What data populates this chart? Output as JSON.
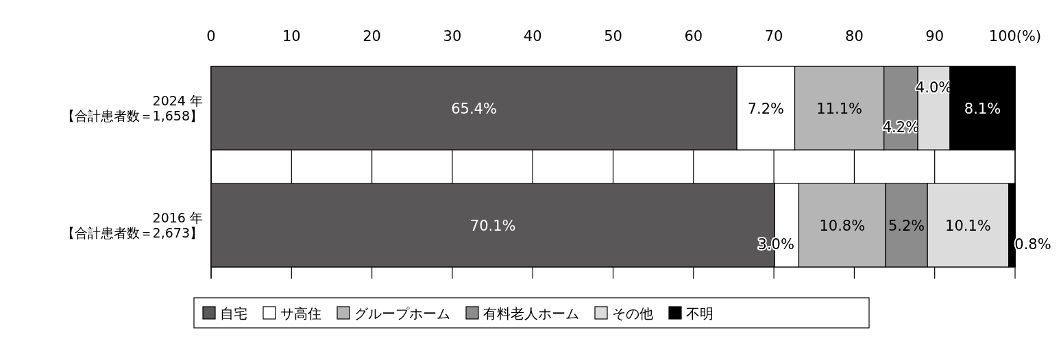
{
  "chart_data": {
    "type": "bar",
    "orientation": "horizontal",
    "stacked": true,
    "categories": [
      "2024 年【合計患者数＝1,658】",
      "2016 年【合計患者数＝2,673】"
    ],
    "series": [
      {
        "name": "自宅",
        "color": "#595757",
        "values": [
          65.4,
          70.1
        ],
        "value_labels": [
          "65.4%",
          "70.1%"
        ]
      },
      {
        "name": "サ高住",
        "color": "#ffffff",
        "values": [
          7.2,
          3.0
        ],
        "value_labels": [
          "7.2%",
          "3.0%"
        ]
      },
      {
        "name": "グループホーム",
        "color": "#b5b5b5",
        "values": [
          11.1,
          10.8
        ],
        "value_labels": [
          "11.1%",
          "10.8%"
        ]
      },
      {
        "name": "有料老人ホーム",
        "color": "#8c8c8c",
        "values": [
          4.2,
          5.2
        ],
        "value_labels": [
          "4.2%",
          "5.2%"
        ]
      },
      {
        "name": "その他",
        "color": "#dcdcdc",
        "values": [
          4.0,
          10.1
        ],
        "value_labels": [
          "4.0%",
          "10.1%"
        ]
      },
      {
        "name": "不明",
        "color": "#000000",
        "values": [
          8.1,
          0.8
        ],
        "value_labels": [
          "8.1%",
          "0.8%"
        ]
      }
    ],
    "xlim": [
      0,
      100
    ],
    "xticks": [
      0,
      10,
      20,
      30,
      40,
      50,
      60,
      70,
      80,
      90,
      {
        "value": 100,
        "label": "100(%)"
      }
    ],
    "grid": "x",
    "legend": "bottom"
  }
}
